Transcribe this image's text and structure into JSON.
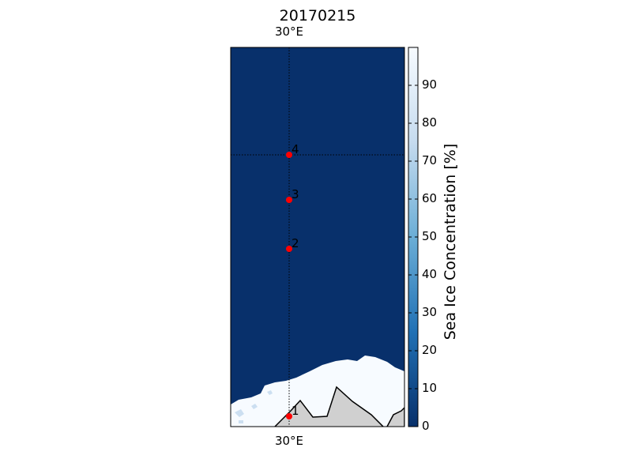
{
  "map": {
    "title": "20170215",
    "top_lon_label": "30°E",
    "bottom_lon_label": "30°E",
    "markers": [
      {
        "label": "1"
      },
      {
        "label": "2"
      },
      {
        "label": "3"
      },
      {
        "label": "4"
      }
    ],
    "colors": {
      "open_water": "#08306b",
      "ice": "#f7fbff",
      "land": "#d0d0d0",
      "marker": "#ff0000"
    }
  },
  "colorbar": {
    "label": "Sea Ice Concentration [%]",
    "ticks": [
      "0",
      "10",
      "20",
      "30",
      "40",
      "50",
      "60",
      "70",
      "80",
      "90"
    ],
    "range": [
      0,
      100
    ],
    "colormap": "Blues_r"
  }
}
